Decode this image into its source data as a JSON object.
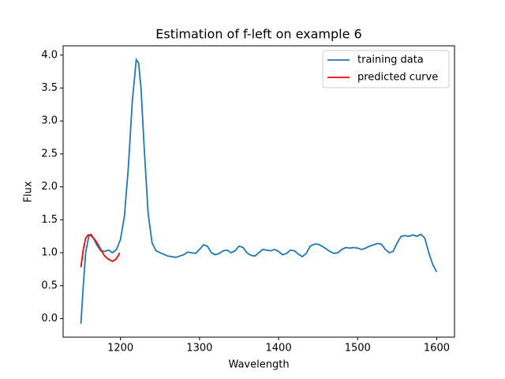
{
  "chart_data": {
    "type": "line",
    "title": "Estimation of f-left on example 6",
    "xlabel": "Wavelength",
    "ylabel": "Flux",
    "xlim": [
      1127.5,
      1622.5
    ],
    "ylim": [
      -0.281,
      4.141
    ],
    "xticks": [
      1200,
      1300,
      1400,
      1500,
      1600
    ],
    "yticks": [
      {
        "value": 0,
        "label": "0.0"
      },
      0.5,
      {
        "value": 1,
        "label": "1.0"
      },
      1.5,
      {
        "value": 2,
        "label": "2.0"
      },
      2.5,
      {
        "value": 3,
        "label": "3.0"
      },
      3.5,
      {
        "value": 4,
        "label": "4.0"
      }
    ],
    "legend": "upper right",
    "grid": false,
    "series": [
      {
        "name": "training data",
        "color": "#1f77b4",
        "x": [
          1150,
          1153,
          1156,
          1160,
          1163,
          1166,
          1170,
          1175,
          1180,
          1185,
          1190,
          1195,
          1200,
          1205,
          1210,
          1215,
          1220,
          1223,
          1226,
          1230,
          1235,
          1240,
          1245,
          1250,
          1260,
          1270,
          1280,
          1285,
          1290,
          1295,
          1300,
          1305,
          1310,
          1315,
          1320,
          1325,
          1330,
          1335,
          1340,
          1345,
          1350,
          1355,
          1360,
          1365,
          1370,
          1375,
          1380,
          1385,
          1390,
          1395,
          1400,
          1405,
          1410,
          1415,
          1420,
          1425,
          1430,
          1435,
          1440,
          1445,
          1450,
          1455,
          1460,
          1465,
          1470,
          1475,
          1480,
          1485,
          1490,
          1495,
          1500,
          1505,
          1510,
          1515,
          1520,
          1525,
          1530,
          1535,
          1540,
          1545,
          1550,
          1555,
          1560,
          1565,
          1570,
          1575,
          1580,
          1585,
          1590,
          1595,
          1600
        ],
        "values": [
          -0.08,
          0.5,
          1.0,
          1.25,
          1.28,
          1.22,
          1.12,
          1.03,
          1.02,
          1.04,
          1.0,
          1.05,
          1.2,
          1.55,
          2.3,
          3.3,
          3.93,
          3.88,
          3.5,
          2.6,
          1.6,
          1.15,
          1.03,
          1.0,
          0.95,
          0.93,
          0.97,
          1.01,
          1.0,
          0.99,
          1.05,
          1.12,
          1.1,
          1.0,
          0.97,
          0.99,
          1.03,
          1.04,
          1.0,
          1.03,
          1.1,
          1.08,
          1.0,
          0.96,
          0.95,
          1.0,
          1.05,
          1.04,
          1.03,
          1.05,
          1.02,
          0.97,
          0.99,
          1.04,
          1.03,
          0.98,
          0.94,
          0.99,
          1.1,
          1.13,
          1.13,
          1.1,
          1.06,
          1.02,
          0.99,
          1.0,
          1.05,
          1.08,
          1.07,
          1.08,
          1.07,
          1.05,
          1.07,
          1.1,
          1.12,
          1.14,
          1.13,
          1.05,
          1.0,
          1.02,
          1.15,
          1.25,
          1.26,
          1.25,
          1.27,
          1.25,
          1.28,
          1.22,
          1.0,
          0.82,
          0.71
        ]
      },
      {
        "name": "predicted curve",
        "color": "#ff0000",
        "x": [
          1150,
          1153,
          1156,
          1159,
          1162,
          1166,
          1170,
          1175,
          1180,
          1185,
          1190,
          1194,
          1197,
          1199
        ],
        "values": [
          0.78,
          1.05,
          1.22,
          1.27,
          1.27,
          1.22,
          1.16,
          1.05,
          0.95,
          0.9,
          0.87,
          0.9,
          0.95,
          1.0
        ]
      }
    ]
  }
}
